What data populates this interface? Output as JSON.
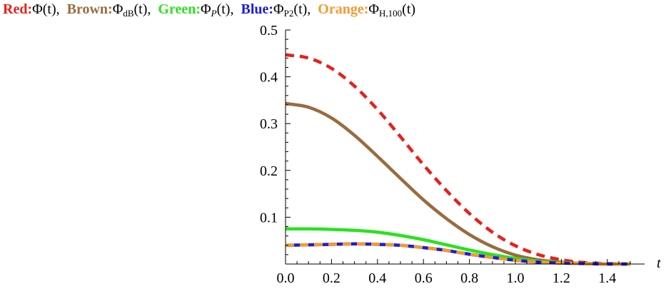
{
  "legend": [
    {
      "prefix": "Red:",
      "func": "Φ",
      "sub": "",
      "sub_italic": false,
      "arg": "(t)",
      "sep": ",",
      "color": "#e8201b"
    },
    {
      "prefix": "Brown:",
      "func": "Φ",
      "sub": "dB",
      "sub_italic": false,
      "arg": "(t)",
      "sep": ",",
      "color": "#9a6b3e"
    },
    {
      "prefix": "Green:",
      "func": "Φ",
      "sub": "P",
      "sub_italic": true,
      "arg": "(t)",
      "sep": ",",
      "color": "#29e31f"
    },
    {
      "prefix": "Blue:",
      "func": "Φ",
      "sub": "P2",
      "sub_italic": false,
      "arg": "(t)",
      "sep": ",",
      "color": "#1a1ed6"
    },
    {
      "prefix": "Orange:",
      "func": "Φ",
      "sub": "H,100",
      "sub_italic": false,
      "sub_italic_part": "H",
      "arg": "(t)",
      "sep": "",
      "color": "#f39a32"
    }
  ],
  "chart_data": {
    "type": "line",
    "xlabel": "t",
    "ylabel": "",
    "xlim": [
      0,
      1.5
    ],
    "ylim": [
      0,
      0.5
    ],
    "x_ticks": [
      "0.0",
      "0.2",
      "0.4",
      "0.6",
      "0.8",
      "1.0",
      "1.2",
      "1.4"
    ],
    "x_tick_values": [
      0,
      0.2,
      0.4,
      0.6,
      0.8,
      1.0,
      1.2,
      1.4
    ],
    "y_ticks": [
      "0.1",
      "0.2",
      "0.3",
      "0.4",
      "0.5"
    ],
    "y_tick_values": [
      0.1,
      0.2,
      0.3,
      0.4,
      0.5
    ],
    "grid": false,
    "x": [
      0.0,
      0.1,
      0.2,
      0.3,
      0.4,
      0.5,
      0.6,
      0.7,
      0.8,
      0.9,
      1.0,
      1.1,
      1.2,
      1.3,
      1.4,
      1.5
    ],
    "series": [
      {
        "color": "#9a6b3e",
        "style": "solid",
        "values": [
          0.343,
          0.335,
          0.312,
          0.275,
          0.23,
          0.183,
          0.137,
          0.097,
          0.063,
          0.037,
          0.019,
          0.009,
          0.004,
          0.001,
          0.0,
          0.0
        ]
      },
      {
        "color": "#e8201b",
        "style": "dashed",
        "values": [
          0.447,
          0.44,
          0.418,
          0.38,
          0.33,
          0.272,
          0.212,
          0.157,
          0.108,
          0.068,
          0.039,
          0.02,
          0.009,
          0.003,
          0.001,
          0.0
        ]
      },
      {
        "color": "#29e31f",
        "style": "solid",
        "values": [
          0.075,
          0.075,
          0.074,
          0.072,
          0.068,
          0.061,
          0.052,
          0.041,
          0.03,
          0.02,
          0.012,
          0.006,
          0.003,
          0.001,
          0.0,
          0.0
        ]
      },
      {
        "color": "#1a1ed6",
        "style": "solid",
        "values": [
          0.04,
          0.041,
          0.042,
          0.043,
          0.042,
          0.04,
          0.035,
          0.029,
          0.021,
          0.014,
          0.008,
          0.004,
          0.002,
          0.001,
          0.0,
          0.0
        ]
      },
      {
        "color": "#f39a32",
        "style": "dashed",
        "values": [
          0.04,
          0.041,
          0.042,
          0.043,
          0.042,
          0.04,
          0.035,
          0.029,
          0.021,
          0.014,
          0.008,
          0.004,
          0.002,
          0.001,
          0.0,
          0.0
        ]
      }
    ]
  }
}
